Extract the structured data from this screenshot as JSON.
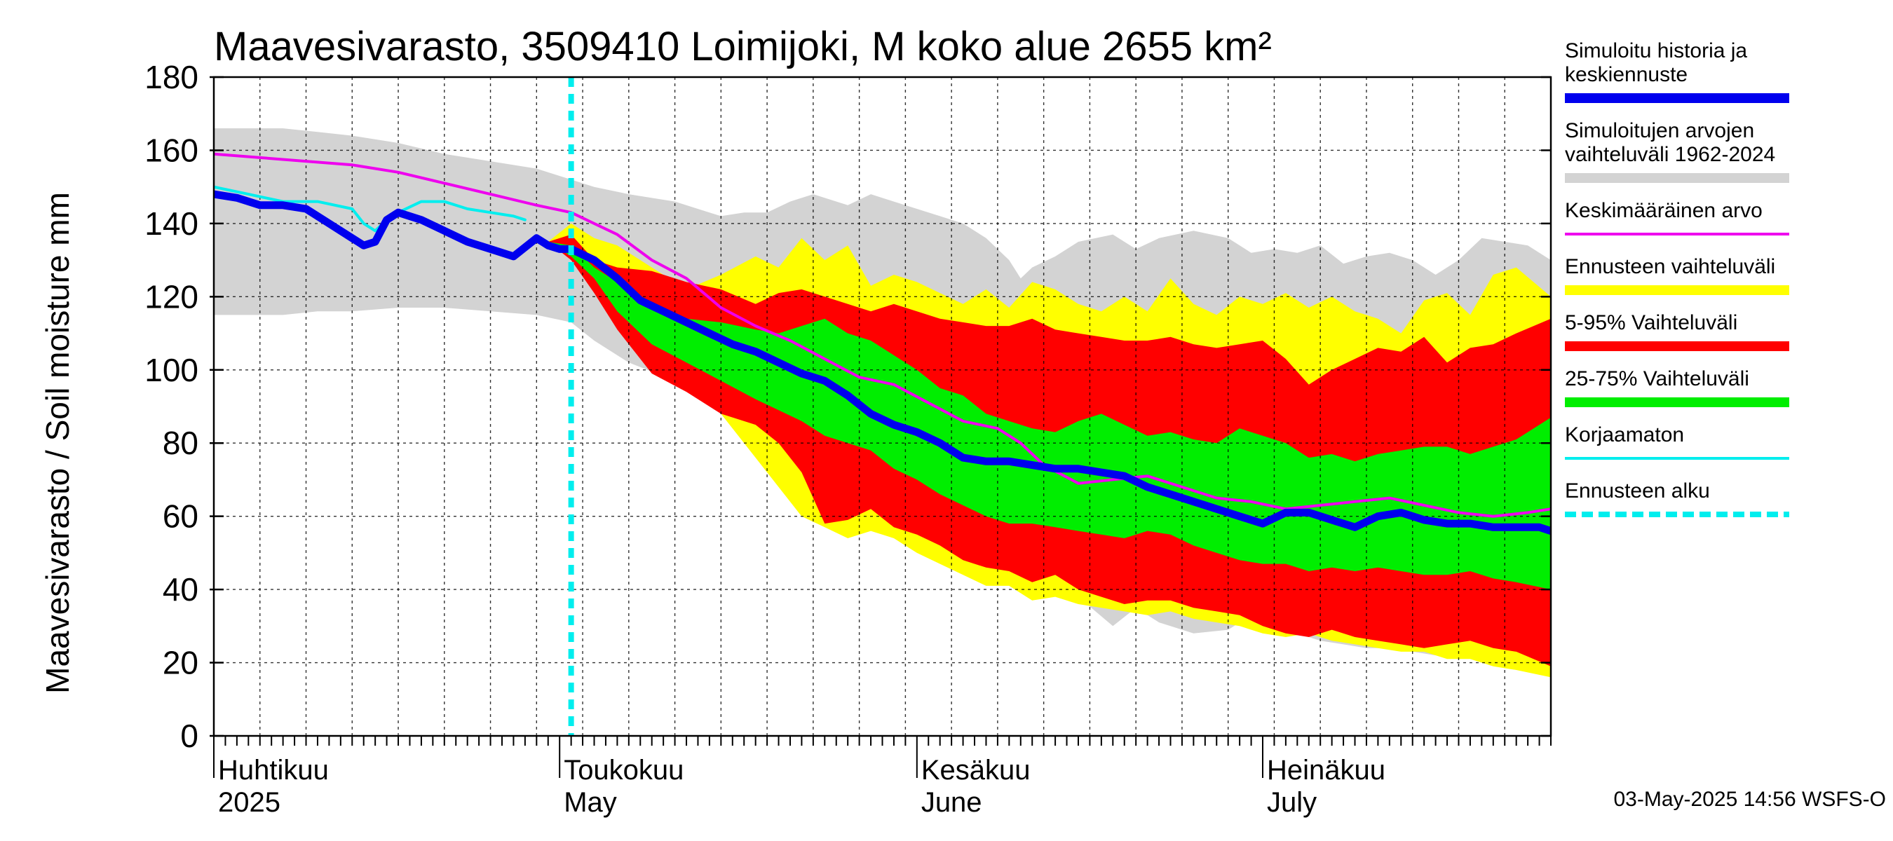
{
  "chart_data": {
    "type": "area",
    "title": "Maavesivarasto, 3509410 Loimijoki, M koko alue 2655 km²",
    "ylabel": "Maavesivarasto / Soil moisture   mm",
    "ylim": [
      0,
      180
    ],
    "yticks": [
      0,
      20,
      40,
      60,
      80,
      100,
      120,
      140,
      160,
      180
    ],
    "x_range_days": [
      0,
      116
    ],
    "forecast_start_day": 31,
    "months": [
      {
        "fi": "Huhtikuu",
        "en": "2025",
        "day": 0
      },
      {
        "fi": "Toukokuu",
        "en": "May",
        "day": 30
      },
      {
        "fi": "Kesäkuu",
        "en": "June",
        "day": 61
      },
      {
        "fi": "Heinäkuu",
        "en": "July",
        "day": 91
      }
    ],
    "colors": {
      "range": "#d3d3d3",
      "forecast_range": "#ffff00",
      "p5_95": "#ff0000",
      "p25_75": "#00ee00",
      "simulated": "#0000ee",
      "mean": "#ee00ee",
      "uncorrected": "#00eeee",
      "forecast_start": "#00eeee"
    },
    "series": [
      {
        "name": "range_upper",
        "x": [
          0,
          6,
          9,
          12,
          16,
          20,
          24,
          28,
          33,
          36,
          40,
          44,
          46,
          48,
          50,
          52,
          55,
          57,
          59,
          61,
          63,
          65,
          67,
          69,
          70,
          71,
          73,
          75,
          78,
          80,
          82,
          85,
          88,
          90,
          92,
          94,
          96,
          98,
          100,
          102,
          104,
          106,
          108,
          110,
          112,
          114,
          116
        ],
        "values": [
          166,
          166,
          165,
          164,
          162,
          159,
          157,
          155,
          150,
          148,
          146,
          142,
          143,
          143,
          146,
          148,
          145,
          148,
          146,
          144,
          142,
          140,
          136,
          130,
          125,
          128,
          131,
          135,
          137,
          133,
          136,
          138,
          136,
          132,
          133,
          132,
          134,
          129,
          131,
          132,
          130,
          126,
          130,
          136,
          135,
          134,
          130
        ]
      },
      {
        "name": "range_lower",
        "x": [
          0,
          6,
          9,
          12,
          16,
          20,
          24,
          28,
          31,
          33,
          36,
          40,
          44,
          46,
          48,
          50,
          52,
          55,
          57,
          59,
          61,
          63,
          65,
          67,
          69,
          71,
          73,
          75,
          78,
          80,
          82,
          85,
          88,
          90,
          92,
          94,
          96,
          98,
          100,
          102,
          104,
          106,
          108,
          110,
          112,
          114,
          116
        ],
        "values": [
          115,
          115,
          116,
          116,
          117,
          117,
          116,
          115,
          113,
          108,
          102,
          97,
          93,
          90,
          84,
          79,
          74,
          70,
          66,
          62,
          58,
          55,
          51,
          47,
          45,
          45,
          42,
          38,
          30,
          35,
          31,
          28,
          29,
          33,
          29,
          28,
          26,
          25,
          24,
          24,
          23,
          22,
          22,
          21,
          20,
          19,
          17
        ]
      },
      {
        "name": "forecast_range_upper",
        "x": [
          29,
          31,
          33,
          35,
          38,
          41,
          44,
          47,
          49,
          51,
          53,
          55,
          57,
          59,
          61,
          63,
          65,
          67,
          69,
          71,
          73,
          75,
          77,
          79,
          81,
          83,
          85,
          87,
          89,
          91,
          93,
          95,
          97,
          99,
          101,
          103,
          105,
          107,
          109,
          111,
          113,
          116
        ],
        "values": [
          135,
          140,
          136,
          134,
          128,
          122,
          126,
          131,
          128,
          136,
          130,
          134,
          123,
          126,
          124,
          121,
          118,
          122,
          117,
          124,
          122,
          118,
          116,
          120,
          116,
          125,
          118,
          115,
          120,
          118,
          121,
          117,
          120,
          116,
          114,
          110,
          119,
          121,
          115,
          126,
          128,
          120
        ]
      },
      {
        "name": "forecast_range_lower",
        "x": [
          29,
          31,
          33,
          35,
          38,
          41,
          44,
          47,
          49,
          51,
          53,
          55,
          57,
          59,
          61,
          63,
          65,
          67,
          69,
          71,
          73,
          75,
          77,
          79,
          81,
          83,
          85,
          87,
          89,
          91,
          93,
          95,
          97,
          99,
          101,
          103,
          105,
          107,
          109,
          111,
          113,
          116
        ],
        "values": [
          135,
          133,
          124,
          114,
          104,
          99,
          88,
          76,
          68,
          60,
          57,
          54,
          56,
          54,
          50,
          47,
          44,
          41,
          41,
          37,
          38,
          36,
          35,
          34,
          33,
          34,
          32,
          31,
          30,
          28,
          27,
          28,
          26,
          25,
          24,
          23,
          23,
          21,
          21,
          19,
          18,
          16
        ]
      },
      {
        "name": "p5_95_upper",
        "x": [
          29,
          31,
          33,
          35,
          38,
          41,
          44,
          47,
          49,
          51,
          53,
          55,
          57,
          59,
          61,
          63,
          65,
          67,
          69,
          71,
          73,
          75,
          77,
          79,
          81,
          83,
          85,
          87,
          89,
          91,
          93,
          95,
          97,
          99,
          101,
          103,
          105,
          107,
          109,
          111,
          113,
          116
        ],
        "values": [
          135,
          137,
          130,
          128,
          127,
          124,
          122,
          118,
          121,
          122,
          120,
          118,
          116,
          118,
          116,
          114,
          113,
          112,
          112,
          114,
          111,
          110,
          109,
          108,
          108,
          109,
          107,
          106,
          107,
          108,
          103,
          96,
          100,
          103,
          106,
          105,
          109,
          102,
          106,
          107,
          110,
          114
        ]
      },
      {
        "name": "p5_95_lower",
        "x": [
          29,
          31,
          33,
          35,
          38,
          41,
          44,
          47,
          49,
          51,
          53,
          55,
          57,
          59,
          61,
          63,
          65,
          67,
          69,
          71,
          73,
          75,
          77,
          79,
          81,
          83,
          85,
          87,
          89,
          91,
          93,
          95,
          97,
          99,
          101,
          103,
          105,
          107,
          109,
          111,
          113,
          116
        ],
        "values": [
          135,
          130,
          121,
          111,
          99,
          94,
          88,
          85,
          80,
          72,
          58,
          59,
          62,
          57,
          55,
          52,
          48,
          46,
          45,
          42,
          44,
          40,
          38,
          36,
          37,
          37,
          35,
          34,
          33,
          30,
          28,
          27,
          29,
          27,
          26,
          25,
          24,
          25,
          26,
          24,
          23,
          19
        ]
      },
      {
        "name": "p25_75_upper",
        "x": [
          29,
          31,
          33,
          35,
          38,
          41,
          44,
          47,
          49,
          51,
          53,
          55,
          57,
          59,
          61,
          63,
          65,
          67,
          69,
          71,
          73,
          75,
          77,
          79,
          81,
          83,
          85,
          87,
          89,
          91,
          93,
          95,
          97,
          99,
          101,
          103,
          105,
          107,
          109,
          111,
          113,
          116
        ],
        "values": [
          135,
          134,
          128,
          124,
          118,
          114,
          113,
          111,
          110,
          112,
          114,
          110,
          108,
          104,
          100,
          95,
          93,
          88,
          86,
          84,
          83,
          86,
          88,
          85,
          82,
          83,
          81,
          80,
          84,
          82,
          80,
          76,
          77,
          75,
          77,
          78,
          79,
          79,
          77,
          79,
          81,
          87
        ]
      },
      {
        "name": "p25_75_lower",
        "x": [
          29,
          31,
          33,
          35,
          38,
          41,
          44,
          47,
          49,
          51,
          53,
          55,
          57,
          59,
          61,
          63,
          65,
          67,
          69,
          71,
          73,
          75,
          77,
          79,
          81,
          83,
          85,
          87,
          89,
          91,
          93,
          95,
          97,
          99,
          101,
          103,
          105,
          107,
          109,
          111,
          113,
          116
        ],
        "values": [
          135,
          131,
          125,
          116,
          107,
          102,
          97,
          92,
          89,
          86,
          82,
          80,
          78,
          73,
          70,
          66,
          63,
          60,
          58,
          58,
          57,
          56,
          55,
          54,
          56,
          55,
          52,
          50,
          48,
          47,
          47,
          45,
          46,
          45,
          46,
          45,
          44,
          44,
          45,
          43,
          42,
          40
        ]
      },
      {
        "name": "Simuloitu historia ja keskiennuste",
        "x": [
          0,
          2,
          4,
          6,
          8,
          10,
          12,
          13,
          14,
          15,
          16,
          18,
          20,
          22,
          24,
          26,
          28,
          29,
          30,
          31,
          33,
          35,
          37,
          39,
          41,
          43,
          45,
          47,
          49,
          51,
          53,
          55,
          57,
          59,
          61,
          63,
          65,
          67,
          69,
          71,
          73,
          75,
          77,
          79,
          81,
          83,
          85,
          87,
          89,
          91,
          93,
          95,
          97,
          99,
          101,
          103,
          105,
          107,
          109,
          111,
          113,
          115,
          116
        ],
        "values": [
          148,
          147,
          145,
          145,
          144,
          140,
          136,
          134,
          135,
          141,
          143,
          141,
          138,
          135,
          133,
          131,
          136,
          134,
          133,
          133,
          130,
          125,
          119,
          116,
          113,
          110,
          107,
          105,
          102,
          99,
          97,
          93,
          88,
          85,
          83,
          80,
          76,
          75,
          75,
          74,
          73,
          73,
          72,
          71,
          68,
          66,
          64,
          62,
          60,
          58,
          61,
          61,
          59,
          57,
          60,
          61,
          59,
          58,
          58,
          57,
          57,
          57,
          56
        ]
      },
      {
        "name": "Keskimääräinen arvo",
        "x": [
          0,
          4,
          8,
          12,
          16,
          20,
          24,
          28,
          31,
          33,
          35,
          38,
          41,
          44,
          47,
          50,
          53,
          56,
          59,
          62,
          65,
          68,
          70,
          72,
          75,
          78,
          81,
          84,
          87,
          90,
          93,
          96,
          99,
          102,
          105,
          108,
          111,
          114,
          116
        ],
        "values": [
          159,
          158,
          157,
          156,
          154,
          151,
          148,
          145,
          143,
          140,
          137,
          130,
          125,
          117,
          112,
          108,
          103,
          98,
          96,
          91,
          86,
          84,
          80,
          74,
          69,
          70,
          71,
          68,
          65,
          64,
          62,
          63,
          64,
          65,
          63,
          61,
          60,
          61,
          62
        ]
      },
      {
        "name": "Korjaamaton",
        "x": [
          0,
          3,
          6,
          9,
          12,
          13,
          14,
          15,
          16,
          18,
          20,
          22,
          24,
          26,
          27
        ],
        "values": [
          150,
          148,
          146,
          146,
          144,
          140,
          138,
          141,
          143,
          146,
          146,
          144,
          143,
          142,
          141
        ]
      }
    ],
    "legend": [
      {
        "label": "Simuloitu historia ja keskiennuste",
        "color": "#0000ee",
        "style": "thick"
      },
      {
        "label": "Simuloitujen arvojen vaihteluväli 1962-2024",
        "color": "#d3d3d3",
        "style": "thick"
      },
      {
        "label": "Keskimääräinen arvo",
        "color": "#ee00ee",
        "style": "thin"
      },
      {
        "label": "Ennusteen vaihteluväli",
        "color": "#ffff00",
        "style": "thick"
      },
      {
        "label": "5-95% Vaihteluväli",
        "color": "#ff0000",
        "style": "thick"
      },
      {
        "label": "25-75% Vaihteluväli",
        "color": "#00ee00",
        "style": "thick"
      },
      {
        "label": "Korjaamaton",
        "color": "#00eeee",
        "style": "thin"
      },
      {
        "label": "Ennusteen alku",
        "color": "#00eeee",
        "style": "dashed"
      }
    ],
    "footer": "03-May-2025 14:56 WSFS-O"
  }
}
